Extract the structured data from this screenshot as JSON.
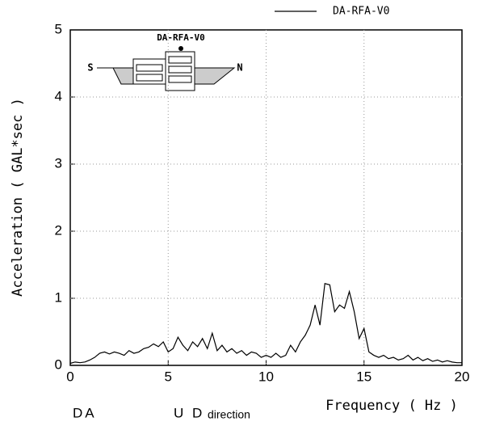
{
  "chart_data": {
    "type": "line",
    "xlabel": "Frequency ( Hz )",
    "ylabel": "Acceleration ( GAL*sec )",
    "xlim": [
      0,
      20
    ],
    "xticks": [
      0,
      5,
      10,
      15,
      20
    ],
    "ylim": [
      0,
      5
    ],
    "yticks": [
      0,
      1,
      2,
      3,
      4,
      5
    ],
    "grid": true,
    "legend": "top-right",
    "annotations": {
      "site": "DA",
      "direction": "U D",
      "direction_suffix": "direction",
      "diagram_label": "DA-RFA-V0",
      "south": "S",
      "north": "N"
    },
    "x": [
      0,
      0.25,
      0.5,
      0.75,
      1,
      1.25,
      1.5,
      1.75,
      2,
      2.25,
      2.5,
      2.75,
      3,
      3.25,
      3.5,
      3.75,
      4,
      4.25,
      4.5,
      4.75,
      5,
      5.25,
      5.5,
      5.75,
      6,
      6.25,
      6.5,
      6.75,
      7,
      7.25,
      7.5,
      7.75,
      8,
      8.25,
      8.5,
      8.75,
      9,
      9.25,
      9.5,
      9.75,
      10,
      10.25,
      10.5,
      10.75,
      11,
      11.25,
      11.5,
      11.75,
      12,
      12.25,
      12.5,
      12.75,
      13,
      13.25,
      13.5,
      13.75,
      14,
      14.25,
      14.5,
      14.75,
      15,
      15.25,
      15.5,
      15.75,
      16,
      16.25,
      16.5,
      16.75,
      17,
      17.25,
      17.5,
      17.75,
      18,
      18.25,
      18.5,
      18.75,
      19,
      19.25,
      19.5,
      19.75,
      20
    ],
    "series": [
      {
        "name": "DA-RFA-V0",
        "color": "#000000",
        "values": [
          0.03,
          0.05,
          0.04,
          0.05,
          0.08,
          0.12,
          0.18,
          0.2,
          0.17,
          0.2,
          0.18,
          0.15,
          0.22,
          0.18,
          0.2,
          0.25,
          0.27,
          0.32,
          0.28,
          0.35,
          0.2,
          0.25,
          0.42,
          0.3,
          0.22,
          0.35,
          0.28,
          0.4,
          0.25,
          0.48,
          0.22,
          0.3,
          0.2,
          0.25,
          0.18,
          0.22,
          0.15,
          0.2,
          0.18,
          0.12,
          0.15,
          0.12,
          0.18,
          0.12,
          0.15,
          0.3,
          0.2,
          0.35,
          0.45,
          0.6,
          0.9,
          0.6,
          1.22,
          1.2,
          0.8,
          0.9,
          0.85,
          1.1,
          0.8,
          0.4,
          0.55,
          0.2,
          0.15,
          0.12,
          0.15,
          0.1,
          0.12,
          0.08,
          0.1,
          0.15,
          0.08,
          0.12,
          0.07,
          0.1,
          0.06,
          0.08,
          0.05,
          0.07,
          0.05,
          0.04,
          0.04
        ]
      }
    ]
  }
}
